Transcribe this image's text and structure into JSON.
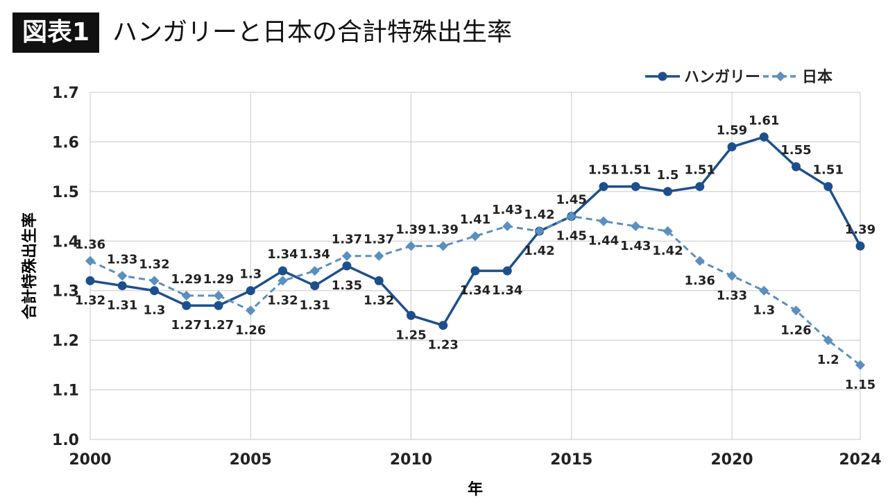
{
  "header": {
    "tag": "図表1",
    "title": "ハンガリーと日本の合計特殊出生率"
  },
  "chart_data": {
    "type": "line",
    "xlabel": "年",
    "ylabel": "合計特殊出生率",
    "ylim": [
      1.0,
      1.7
    ],
    "yticks": [
      "1.0",
      "1.1",
      "1.2",
      "1.3",
      "1.4",
      "1.5",
      "1.6",
      "1.7"
    ],
    "xticks": [
      "2000",
      "2005",
      "2010",
      "2015",
      "2020",
      "2024"
    ],
    "grid": true,
    "legend": "top-right",
    "x": [
      2000,
      2001,
      2002,
      2003,
      2004,
      2005,
      2006,
      2007,
      2008,
      2009,
      2010,
      2011,
      2012,
      2013,
      2014,
      2015,
      2016,
      2017,
      2018,
      2019,
      2020,
      2021,
      2022,
      2023,
      2024
    ],
    "series": [
      {
        "name": "ハンガリー",
        "color": "#1d4f8c",
        "style": "solid-circle",
        "values": [
          1.32,
          1.31,
          1.3,
          1.27,
          1.27,
          1.3,
          1.34,
          1.31,
          1.35,
          1.32,
          1.25,
          1.23,
          1.34,
          1.34,
          1.42,
          1.45,
          1.51,
          1.51,
          1.5,
          1.51,
          1.59,
          1.61,
          1.55,
          1.51,
          1.39
        ]
      },
      {
        "name": "日本",
        "color": "#5b8fbf",
        "style": "dashed-diamond",
        "values": [
          1.36,
          1.33,
          1.32,
          1.29,
          1.29,
          1.26,
          1.32,
          1.34,
          1.37,
          1.37,
          1.39,
          1.39,
          1.41,
          1.43,
          1.42,
          1.45,
          1.44,
          1.43,
          1.42,
          1.36,
          1.33,
          1.3,
          1.26,
          1.2,
          1.15
        ]
      }
    ]
  }
}
